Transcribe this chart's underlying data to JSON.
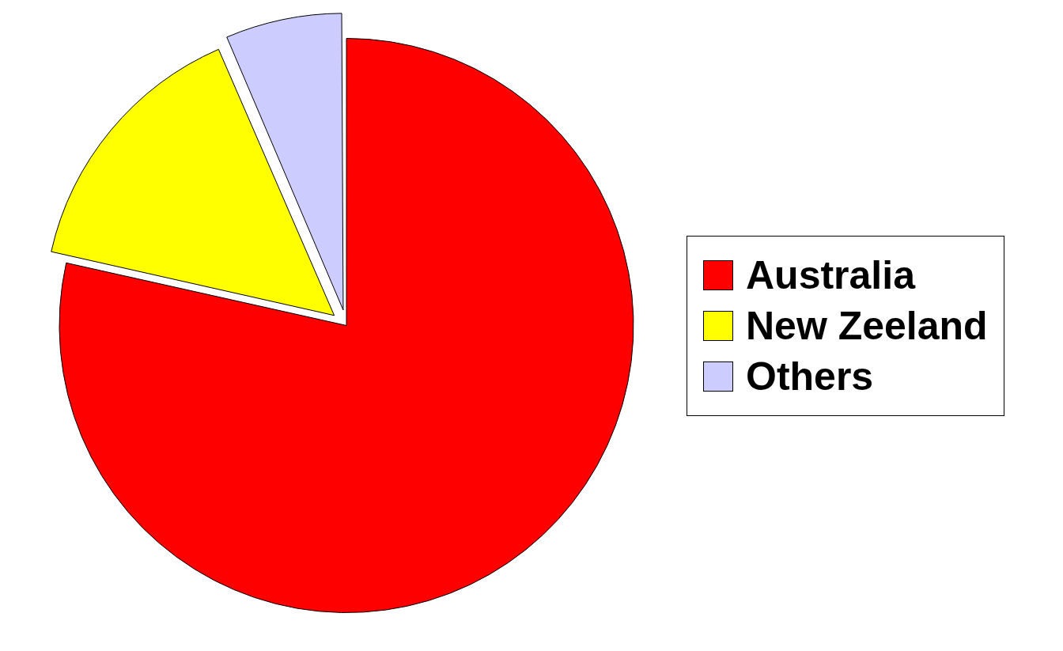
{
  "chart_data": {
    "type": "pie",
    "categories": [
      "Australia",
      "New Zeeland",
      "Others"
    ],
    "values": [
      78.5,
      15,
      6.5
    ],
    "colors": [
      "#ff0000",
      "#ffff00",
      "#ccccff"
    ],
    "legend": "right"
  }
}
